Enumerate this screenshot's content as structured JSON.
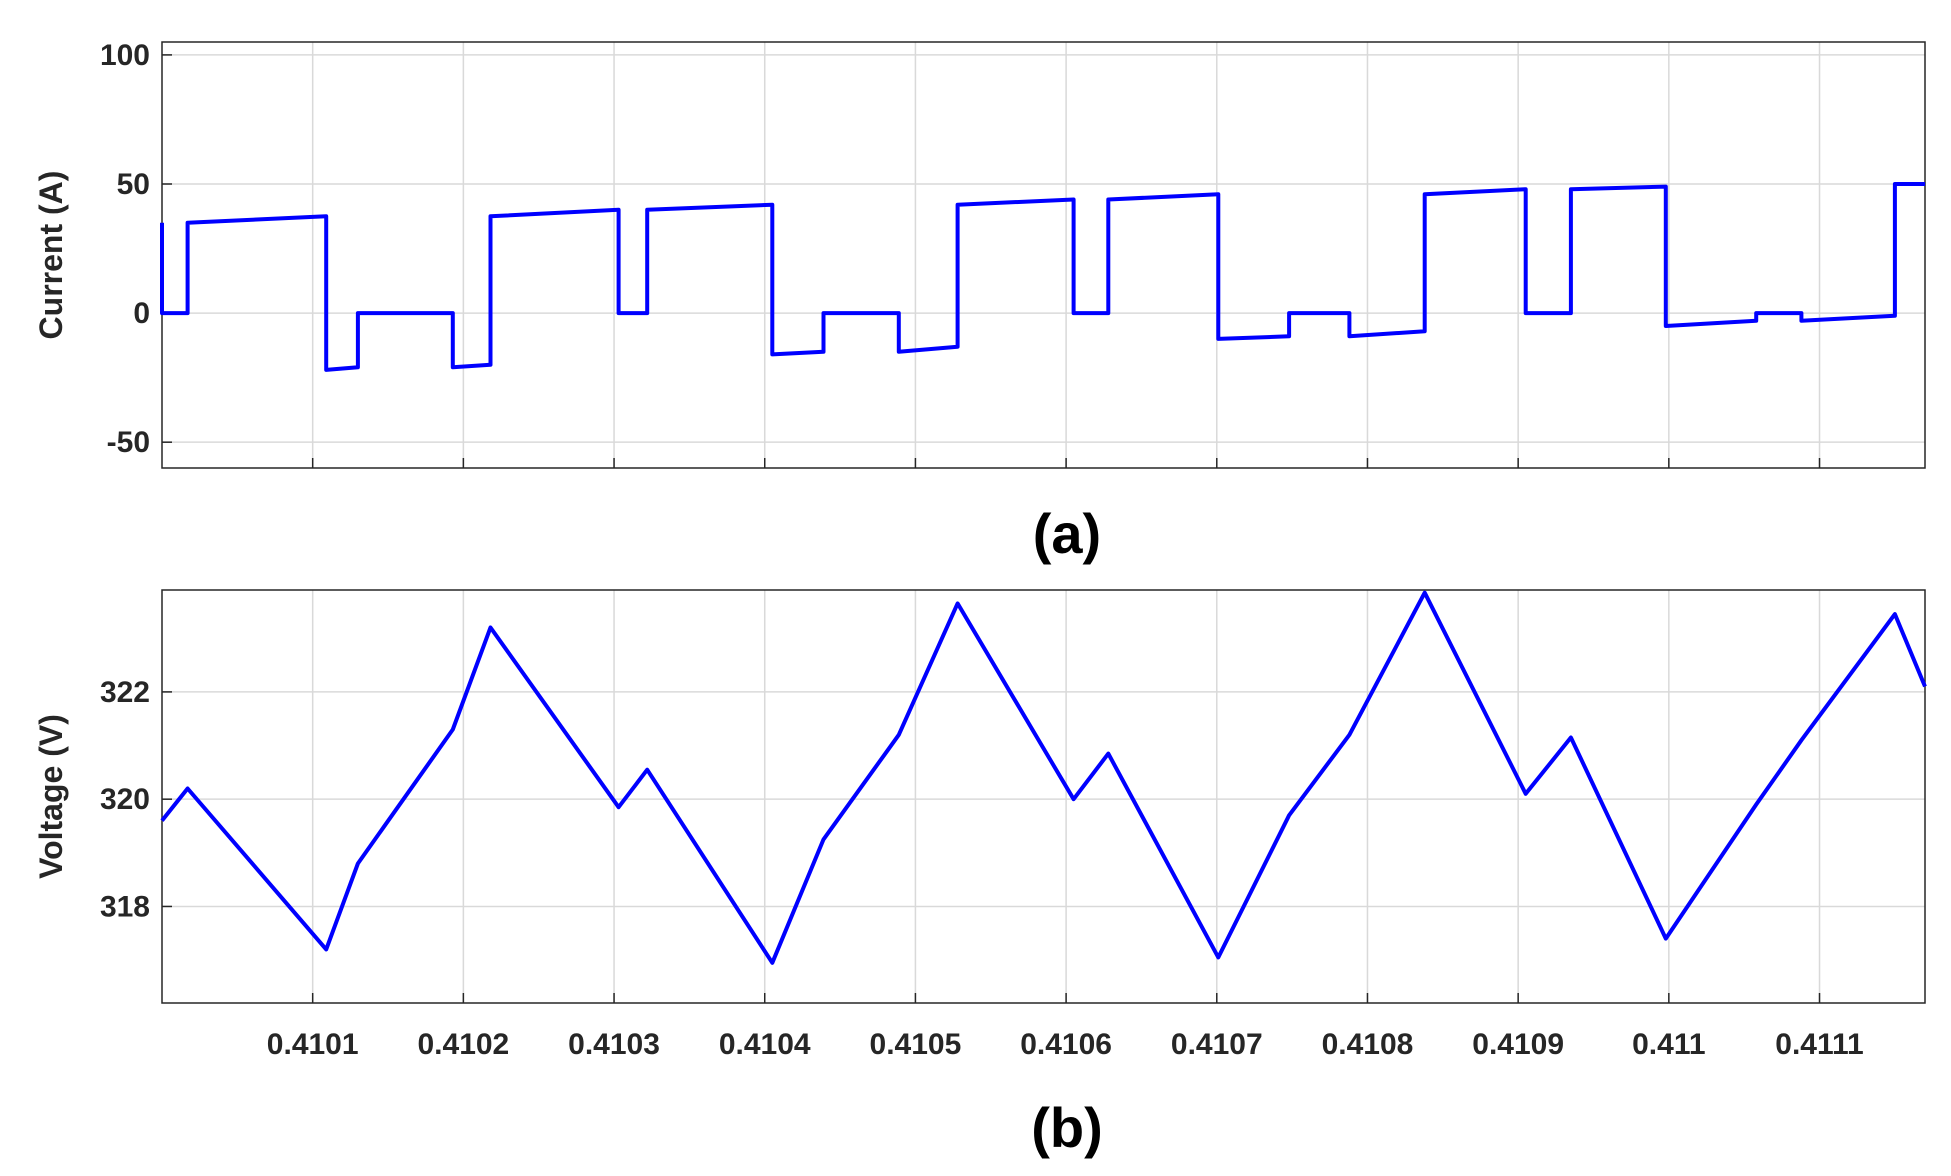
{
  "colors": {
    "series": "#0000ff",
    "grid": "#d9d9d9",
    "axis": "#262626"
  },
  "chart_data": [
    {
      "type": "line",
      "panel_label": "(a)",
      "ylabel": "Current (A)",
      "xlim": [
        0.41,
        0.41117
      ],
      "ylim": [
        -60,
        105
      ],
      "x_grid": [
        0.4101,
        0.4102,
        0.4103,
        0.4104,
        0.4105,
        0.4106,
        0.4107,
        0.4108,
        0.4109,
        0.411,
        0.4111
      ],
      "x_tick_labels": [],
      "y_ticks": [
        -50,
        0,
        50,
        100
      ],
      "y_tick_labels": [
        "-50",
        "0",
        "50",
        "100"
      ],
      "grid": true,
      "series": [
        {
          "x": [
            0.41,
            0.41,
            0.410017,
            0.410017,
            0.410109,
            0.410109,
            0.41013,
            0.41013,
            0.410193,
            0.410193,
            0.410218,
            0.410218,
            0.410303,
            0.410303,
            0.410322,
            0.410322,
            0.410405,
            0.410405,
            0.410439,
            0.410439,
            0.410489,
            0.410489,
            0.410528,
            0.410528,
            0.410605,
            0.410605,
            0.410628,
            0.410628,
            0.410701,
            0.410701,
            0.410748,
            0.410748,
            0.410788,
            0.410788,
            0.410838,
            0.410838,
            0.410905,
            0.410905,
            0.410935,
            0.410935,
            0.410998,
            0.410998,
            0.411058,
            0.411058,
            0.411088,
            0.411088,
            0.41115,
            0.41115,
            0.41117
          ],
          "y": [
            35,
            0,
            0,
            35,
            37.5,
            -22,
            -21,
            0,
            0,
            -21,
            -20,
            37.5,
            40,
            0,
            0,
            40,
            42,
            -16,
            -15,
            0,
            0,
            -15,
            -13,
            42,
            44,
            0,
            0,
            44,
            46,
            -10,
            -9,
            0,
            0,
            -9,
            -7,
            46,
            48,
            0,
            0,
            48,
            49,
            -5,
            -3,
            0,
            0,
            -3,
            -1,
            50,
            50
          ]
        }
      ]
    },
    {
      "type": "line",
      "panel_label": "(b)",
      "ylabel": "Voltage (V)",
      "xlim": [
        0.41,
        0.41117
      ],
      "ylim": [
        316.2,
        323.9
      ],
      "x_grid": [
        0.4101,
        0.4102,
        0.4103,
        0.4104,
        0.4105,
        0.4106,
        0.4107,
        0.4108,
        0.4109,
        0.411,
        0.4111
      ],
      "x_tick_labels": [
        "0.4101",
        "0.4102",
        "0.4103",
        "0.4104",
        "0.4105",
        "0.4106",
        "0.4107",
        "0.4108",
        "0.4109",
        "0.411",
        "0.4111"
      ],
      "y_ticks": [
        318,
        320,
        322
      ],
      "y_tick_labels": [
        "318",
        "320",
        "322"
      ],
      "grid": true,
      "series": [
        {
          "x": [
            0.41,
            0.410017,
            0.410109,
            0.41013,
            0.410193,
            0.410218,
            0.410303,
            0.410322,
            0.410405,
            0.410439,
            0.410489,
            0.410528,
            0.410605,
            0.410628,
            0.410701,
            0.410748,
            0.410788,
            0.410838,
            0.410905,
            0.410935,
            0.410998,
            0.411058,
            0.411088,
            0.41115,
            0.41117
          ],
          "y": [
            319.6,
            320.2,
            317.2,
            318.8,
            321.3,
            323.2,
            319.85,
            320.55,
            316.95,
            319.25,
            321.2,
            323.65,
            320.0,
            320.85,
            317.05,
            319.7,
            321.2,
            323.85,
            320.1,
            321.15,
            317.4,
            319.9,
            321.1,
            323.45,
            322.1
          ]
        }
      ]
    }
  ]
}
